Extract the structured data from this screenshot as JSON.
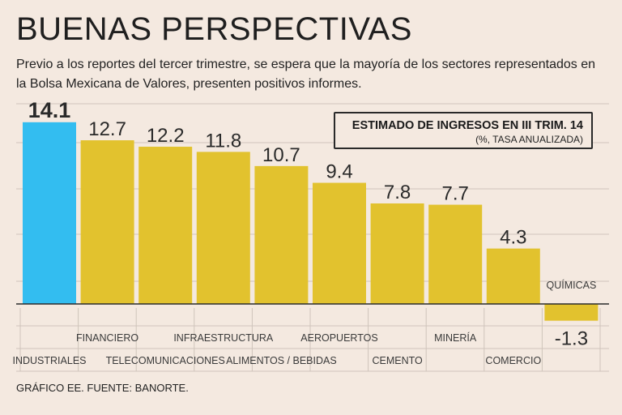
{
  "title": "BUENAS PERSPECTIVAS",
  "subtitle": "Previo a los reportes del tercer trimestre, se espera que la mayoría de los sectores representados en la Bolsa Mexicana de Valores, presenten positivos informes.",
  "legend": {
    "title": "ESTIMADO DE INGRESOS EN III TRIM. 14",
    "subtitle": "(%, TASA ANUALIZADA)"
  },
  "source": "GRÁFICO EE. FUENTE: BANORTE.",
  "colors": {
    "highlight": "#33bdf0",
    "bar": "#e2c22e",
    "grid": "#cfc4bb",
    "axis": "#2a2a2a"
  },
  "chart_data": {
    "type": "bar",
    "title": "ESTIMADO DE INGRESOS EN III TRIM. 14",
    "ylabel": "(%, TASA ANUALIZADA)",
    "xlabel": "",
    "ylim": [
      -2,
      15
    ],
    "grid": true,
    "highlight_index": 0,
    "categories": [
      "INDUSTRIALES",
      "FINANCIERO",
      "TELECOMUNICACIONES",
      "INFRAESTRUCTURA",
      "ALIMENTOS / BEBIDAS",
      "AEROPUERTOS",
      "CEMENTO",
      "MINERÍA",
      "COMERCIO",
      "QUÍMICAS"
    ],
    "values": [
      14.1,
      12.7,
      12.2,
      11.8,
      10.7,
      9.4,
      7.8,
      7.7,
      4.3,
      -1.3
    ],
    "value_labels": [
      "14.1",
      "12.7",
      "12.2",
      "11.8",
      "10.7",
      "9.4",
      "7.8",
      "7.7",
      "4.3",
      "-1.3"
    ]
  }
}
